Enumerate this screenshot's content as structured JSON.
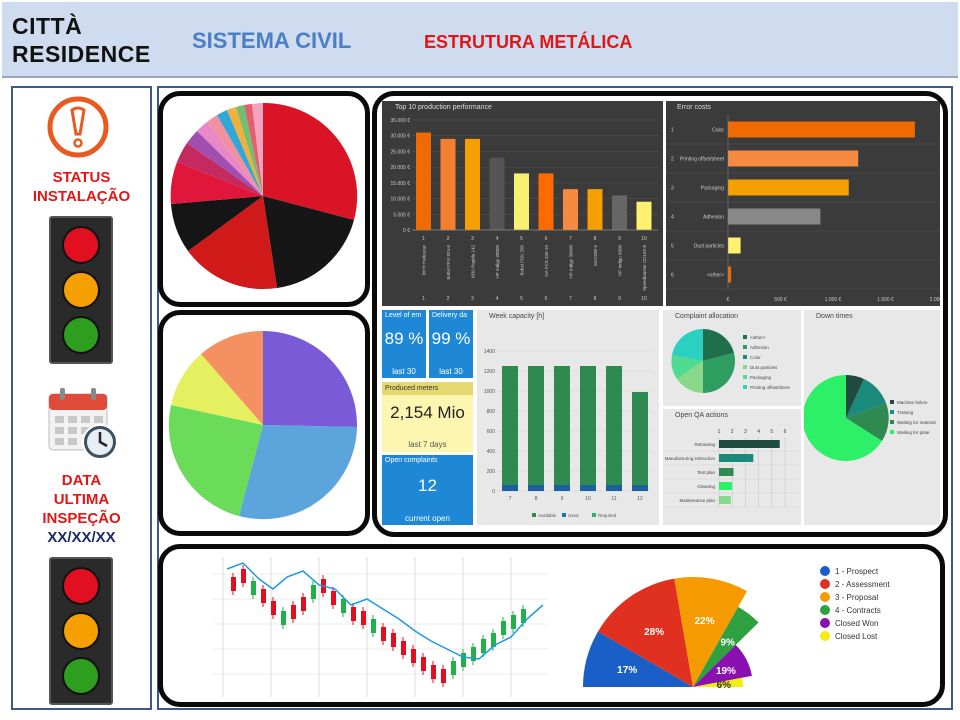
{
  "header": {
    "brand_line1": "CITTÀ",
    "brand_line2": "RESIDENCE",
    "system": "SISTEMA CIVIL",
    "structure": "ESTRUTURA METÁLICA"
  },
  "sidebar": {
    "status_line1": "STATUS",
    "status_line2": "INSTALAÇÃO",
    "inspection_line1": "DATA",
    "inspection_line2": "ULTIMA",
    "inspection_line3": "INSPEÇÃO",
    "inspection_date": "XX/XX/XX",
    "colors": {
      "red": "#e01020",
      "orange": "#f5a000",
      "green": "#2e9e1e"
    }
  },
  "dashboard": {
    "top10": {
      "title": "Top 10 production performance",
      "y_ticks": [
        "35.000 €",
        "30.000 €",
        "25.000 €",
        "20.000 €",
        "15.000 €",
        "10.000 €",
        "5.000 €",
        "0 €"
      ],
      "machines": [
        "W+H Helioscar",
        "Bobst FFG 924-6",
        "KBA Rapida 142",
        "HP Indigo 20000",
        "Bobst FDK 205",
        "GA FCS 330-10",
        "HP Indigo 30000",
        "MA2200-5",
        "HP Indigo 6600",
        "Speedmaster CD102-8"
      ],
      "ranks": [
        "1",
        "2",
        "3",
        "4",
        "5",
        "6",
        "7",
        "8",
        "9",
        "10"
      ],
      "values": [
        31,
        29,
        29,
        23,
        18,
        18,
        13,
        13,
        11,
        9
      ]
    },
    "error_costs": {
      "title": "Error costs",
      "items": [
        {
          "rank": "1",
          "label": "Color",
          "value": 1780
        },
        {
          "rank": "2",
          "label": "Printing offset/sheet",
          "value": 1240
        },
        {
          "rank": "3",
          "label": "Packaging",
          "value": 1150
        },
        {
          "rank": "4",
          "label": "Adhesion",
          "value": 880
        },
        {
          "rank": "5",
          "label": "Dust particles",
          "value": 120
        },
        {
          "rank": "6",
          "label": "<other>",
          "value": 30
        }
      ],
      "x_ticks": [
        "€",
        "500 €",
        "1.000 €",
        "1.500 €",
        "2.000 €"
      ]
    },
    "level": {
      "label": "Level of em",
      "value": "89 %",
      "sub": "last 30"
    },
    "delivery": {
      "label": "Delivery da",
      "value": "99 %",
      "sub": "last 30"
    },
    "produced": {
      "label": "Produced meters",
      "value": "2,154 Mio",
      "sub": "last 7 days"
    },
    "complaints": {
      "label": "Open complaints",
      "value": "12",
      "sub": "current open"
    },
    "week": {
      "title": "Week capacity [h]",
      "y_ticks": [
        "1400",
        "1200",
        "1000",
        "800",
        "600",
        "400",
        "200",
        "0"
      ],
      "weeks": [
        "7",
        "8",
        "9",
        "10",
        "11",
        "12"
      ],
      "values": [
        1250,
        1250,
        1250,
        1250,
        1250,
        990
      ],
      "legend": [
        "Available",
        "Used",
        "Required"
      ]
    },
    "complaint_alloc": {
      "title": "Complaint allocation",
      "legend": [
        "<other>",
        "Adhesion",
        "Color",
        "Dust particles",
        "Packaging",
        "Printing offset/sheet"
      ]
    },
    "down_times": {
      "title": "Down times",
      "legend": [
        "Machine failure",
        "Training",
        "Waiting for material",
        "Waiting for plate"
      ]
    },
    "qa": {
      "title": "Open QA actions",
      "x_ticks": [
        "1",
        "2",
        "3",
        "4",
        "5",
        "6"
      ],
      "rows": [
        {
          "label": "Retraining",
          "value": 4.6
        },
        {
          "label": "Manufacturing instruction",
          "value": 2.6
        },
        {
          "label": "Test plan",
          "value": 1.1
        },
        {
          "label": "Cleaning",
          "value": 1.0
        },
        {
          "label": "Maintenance plan",
          "value": 0.9
        }
      ]
    }
  },
  "funnel": {
    "legend": [
      "1 - Prospect",
      "2 - Assessment",
      "3 - Proposal",
      "4 - Contracts",
      "Closed Won",
      "Closed Lost"
    ],
    "colors": [
      "#1a5fc8",
      "#e03020",
      "#f59a00",
      "#2ea040",
      "#8a10b0",
      "#f2ee10"
    ],
    "pct_labels": [
      "17%",
      "28%",
      "22%",
      "9%",
      "19%",
      "6%"
    ],
    "values": [
      17,
      28,
      22,
      9,
      19,
      6
    ]
  }
}
